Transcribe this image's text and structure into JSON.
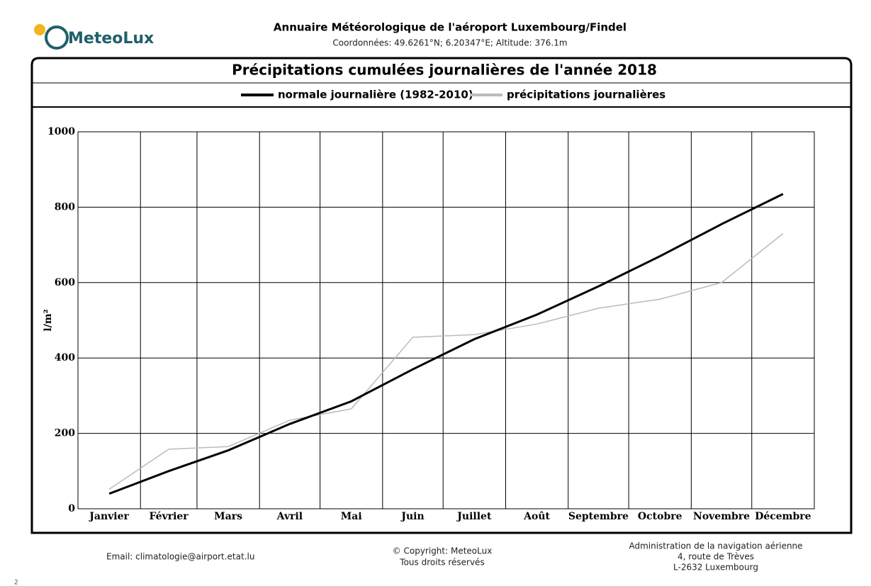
{
  "header": {
    "logo": "MeteoLux",
    "title": "Annuaire Météorologique de l'aéroport Luxembourg/Findel",
    "subtitle": "Coordonnées: 49.6261°N; 6.20347°E; Altitude: 376.1m"
  },
  "chart_data": {
    "type": "line",
    "title": "Précipitations cumulées journalières de l'année 2018",
    "categories": [
      "Janvier",
      "Février",
      "Mars",
      "Avril",
      "Mai",
      "Juin",
      "Juillet",
      "Août",
      "Septembre",
      "Octobre",
      "Novembre",
      "Décembre"
    ],
    "series": [
      {
        "name": "normale journalière (1982-2010)",
        "color": "#000000",
        "values": [
          40,
          100,
          155,
          225,
          285,
          370,
          450,
          515,
          590,
          670,
          755,
          835
        ]
      },
      {
        "name": "précipitations journalières",
        "color": "#bbbbbb",
        "values": [
          52,
          158,
          165,
          235,
          265,
          455,
          462,
          490,
          532,
          556,
          600,
          730
        ]
      }
    ],
    "ylabel": "l/m²",
    "ylim": [
      0,
      1000
    ],
    "yticks": [
      0,
      200,
      400,
      600,
      800,
      1000
    ],
    "grid": true
  },
  "footer": {
    "email": "Email: climatologie@airport.etat.lu",
    "copyright": [
      "© Copyright: MeteoLux",
      "Tous droits réservés"
    ],
    "address": [
      "Administration de la navigation aérienne",
      "4, route de Trèves",
      "L-2632 Luxembourg"
    ]
  },
  "page_marker": "2"
}
